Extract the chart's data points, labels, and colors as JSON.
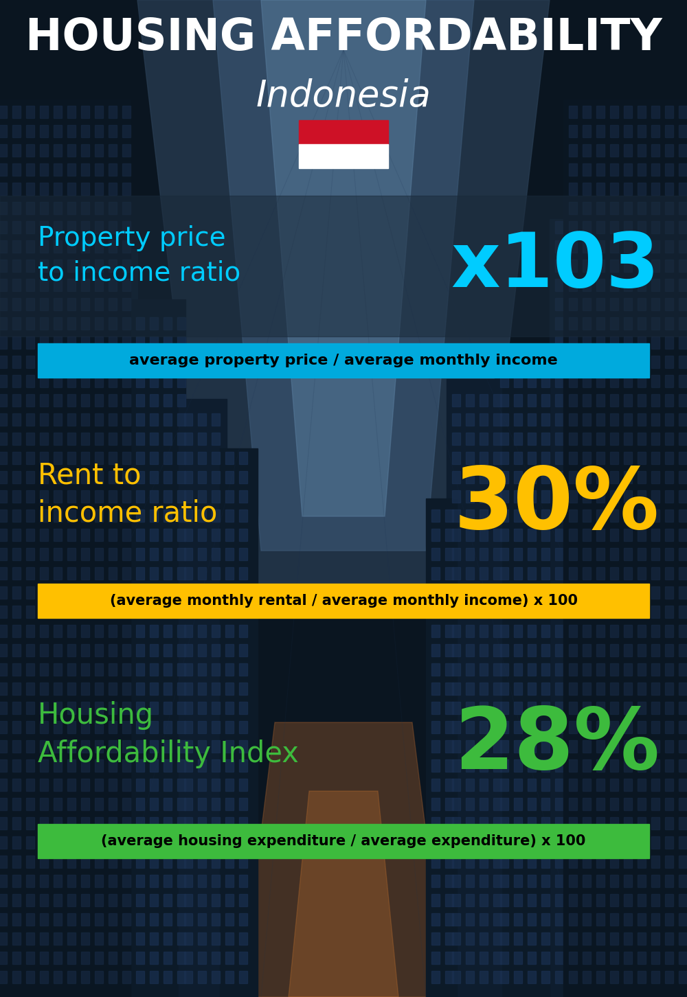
{
  "title_line1": "HOUSING AFFORDABILITY",
  "title_line2": "Indonesia",
  "bg_color": "#0d1b2a",
  "section1_label": "Property price\nto income ratio",
  "section1_value": "x103",
  "section1_sublabel": "average property price / average monthly income",
  "section1_label_color": "#00ccff",
  "section1_value_color": "#00ccff",
  "section1_bar_color": "#00aadd",
  "section2_label": "Rent to\nincome ratio",
  "section2_value": "30%",
  "section2_sublabel": "(average monthly rental / average monthly income) x 100",
  "section2_label_color": "#ffc000",
  "section2_value_color": "#ffc000",
  "section2_bar_color": "#ffc000",
  "section3_label": "Housing\nAffordability Index",
  "section3_value": "28%",
  "section3_sublabel": "(average housing expenditure / average expenditure) x 100",
  "section3_label_color": "#3dbb3d",
  "section3_value_color": "#3dbb3d",
  "section3_bar_color": "#3dbb3d",
  "flag_red": "#ce1126",
  "flag_white": "#ffffff"
}
